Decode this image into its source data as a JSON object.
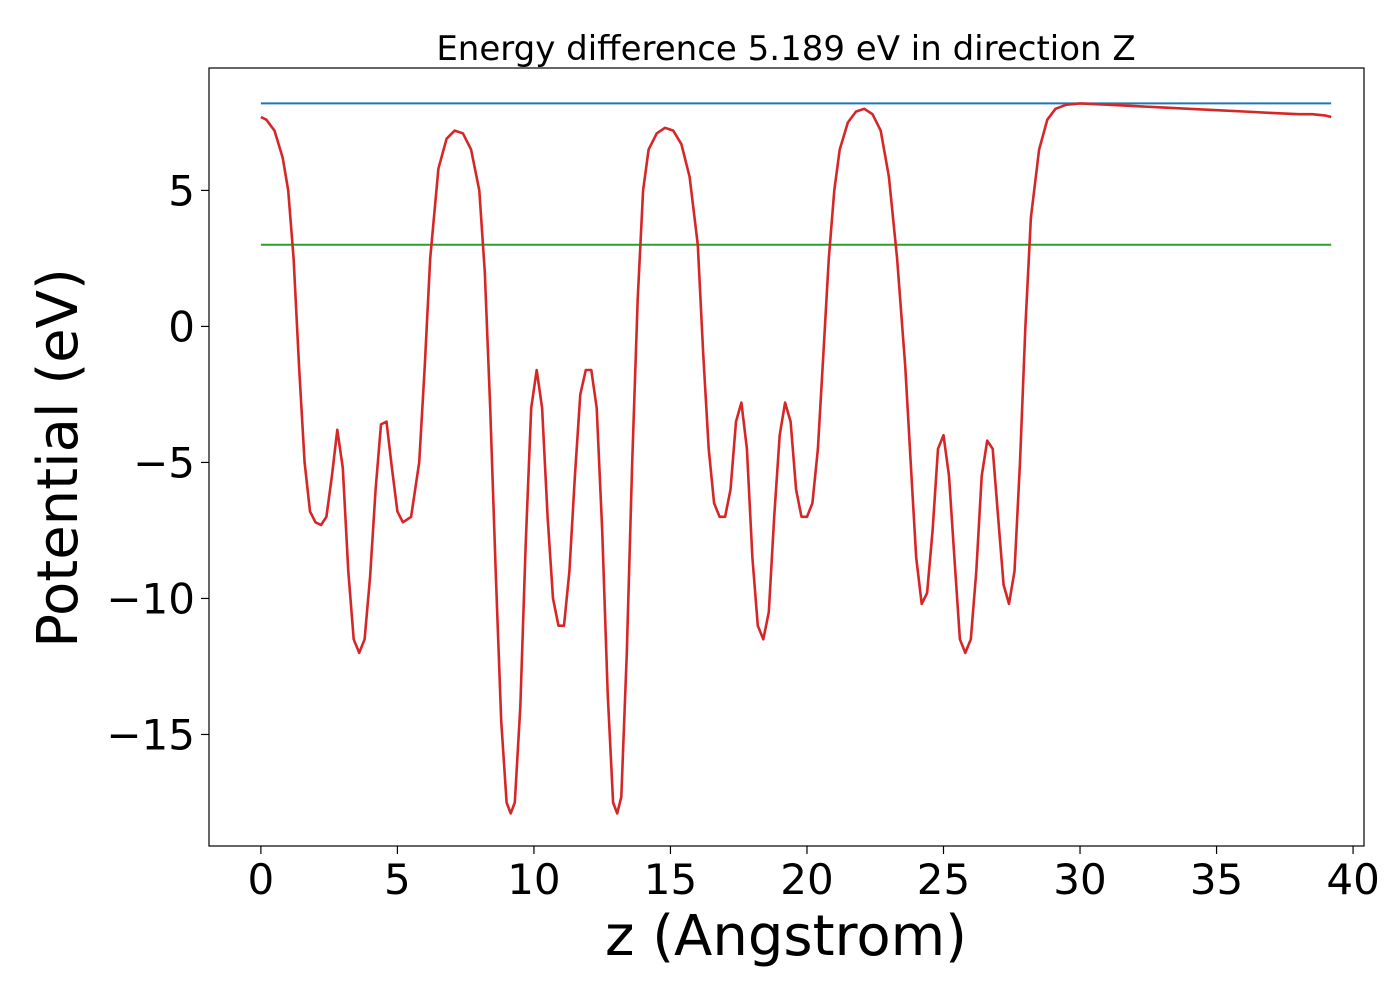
{
  "chart_data": {
    "type": "line",
    "title": "Energy difference 5.189 eV in direction Z",
    "xlabel": "z (Angstrom)",
    "ylabel": "Potential (eV)",
    "xlim": [
      -1.9,
      40.4
    ],
    "ylim": [
      -19.1,
      9.5
    ],
    "xticks": [
      {
        "value": 0,
        "label": "0"
      },
      {
        "value": 5,
        "label": "5"
      },
      {
        "value": 10,
        "label": "10"
      },
      {
        "value": 15,
        "label": "15"
      },
      {
        "value": 20,
        "label": "20"
      },
      {
        "value": 25,
        "label": "25"
      },
      {
        "value": 30,
        "label": "30"
      },
      {
        "value": 35,
        "label": "35"
      },
      {
        "value": 40,
        "label": "40"
      }
    ],
    "yticks": [
      {
        "value": 5,
        "label": "5"
      },
      {
        "value": 0,
        "label": "0"
      },
      {
        "value": -5,
        "label": "−5"
      },
      {
        "value": -10,
        "label": "−10"
      },
      {
        "value": -15,
        "label": "−15"
      }
    ],
    "grid": false,
    "series": [
      {
        "color": "#1f77b4",
        "x": [
          0,
          39.2
        ],
        "y": [
          8.2,
          8.2
        ]
      },
      {
        "color": "#2ca02c",
        "x": [
          0,
          39.2
        ],
        "y": [
          3.0,
          3.0
        ]
      },
      {
        "color": "#d62728",
        "x": [
          0,
          0.2,
          0.5,
          0.8,
          1.0,
          1.2,
          1.4,
          1.6,
          1.8,
          2.0,
          2.2,
          2.4,
          2.6,
          2.8,
          3.0,
          3.2,
          3.4,
          3.6,
          3.8,
          4.0,
          4.2,
          4.4,
          4.6,
          4.8,
          5.0,
          5.2,
          5.5,
          5.8,
          6.0,
          6.2,
          6.5,
          6.8,
          7.1,
          7.4,
          7.7,
          8.0,
          8.2,
          8.4,
          8.6,
          8.8,
          9.0,
          9.15,
          9.3,
          9.5,
          9.7,
          9.9,
          10.1,
          10.3,
          10.5,
          10.7,
          10.9,
          11.1,
          11.3,
          11.5,
          11.7,
          11.9,
          12.1,
          12.3,
          12.5,
          12.7,
          12.9,
          13.05,
          13.2,
          13.4,
          13.6,
          13.8,
          14.0,
          14.2,
          14.5,
          14.8,
          15.1,
          15.4,
          15.7,
          16.0,
          16.2,
          16.4,
          16.6,
          16.8,
          17.0,
          17.2,
          17.4,
          17.6,
          17.8,
          18.0,
          18.2,
          18.4,
          18.6,
          18.8,
          19.0,
          19.2,
          19.4,
          19.6,
          19.8,
          20.0,
          20.2,
          20.4,
          20.6,
          20.8,
          21.0,
          21.2,
          21.5,
          21.8,
          22.1,
          22.4,
          22.7,
          23.0,
          23.3,
          23.6,
          23.8,
          24.0,
          24.2,
          24.4,
          24.6,
          24.8,
          25.0,
          25.2,
          25.4,
          25.6,
          25.8,
          26.0,
          26.2,
          26.4,
          26.6,
          26.8,
          27.0,
          27.2,
          27.4,
          27.6,
          27.8,
          28.0,
          28.2,
          28.5,
          28.8,
          29.1,
          29.5,
          30.0,
          31.0,
          32.0,
          33.0,
          34.0,
          35.0,
          36.0,
          37.0,
          38.0,
          38.5,
          39.0,
          39.2
        ],
        "y": [
          7.7,
          7.6,
          7.2,
          6.2,
          5.0,
          2.5,
          -1.5,
          -5.0,
          -6.8,
          -7.2,
          -7.3,
          -7.0,
          -5.5,
          -3.8,
          -5.2,
          -9.0,
          -11.5,
          -12.0,
          -11.5,
          -9.2,
          -6.0,
          -3.6,
          -3.5,
          -5.2,
          -6.8,
          -7.2,
          -7.0,
          -5.0,
          -1.5,
          2.5,
          5.8,
          6.9,
          7.2,
          7.1,
          6.5,
          5.0,
          2.0,
          -3.0,
          -9.0,
          -14.5,
          -17.5,
          -17.9,
          -17.5,
          -14.0,
          -8.0,
          -3.0,
          -1.6,
          -3.0,
          -7.0,
          -10.0,
          -11.0,
          -11.0,
          -9.0,
          -5.5,
          -2.5,
          -1.6,
          -1.6,
          -3.0,
          -7.5,
          -13.5,
          -17.5,
          -17.9,
          -17.3,
          -12.0,
          -5.0,
          1.0,
          5.0,
          6.5,
          7.1,
          7.3,
          7.2,
          6.7,
          5.5,
          3.0,
          -1.0,
          -4.5,
          -6.5,
          -7.0,
          -7.0,
          -6.0,
          -3.5,
          -2.8,
          -4.5,
          -8.5,
          -11.0,
          -11.5,
          -10.5,
          -7.0,
          -4.0,
          -2.8,
          -3.5,
          -6.0,
          -7.0,
          -7.0,
          -6.5,
          -4.5,
          -1.0,
          2.5,
          5.0,
          6.5,
          7.5,
          7.9,
          8.0,
          7.8,
          7.2,
          5.5,
          2.5,
          -1.5,
          -5.0,
          -8.5,
          -10.2,
          -9.8,
          -7.5,
          -4.5,
          -4.0,
          -5.5,
          -8.5,
          -11.5,
          -12.0,
          -11.5,
          -9.0,
          -5.5,
          -4.2,
          -4.5,
          -7.0,
          -9.5,
          -10.2,
          -9.0,
          -5.0,
          0.0,
          4.0,
          6.5,
          7.6,
          8.0,
          8.15,
          8.2,
          8.15,
          8.1,
          8.05,
          8.0,
          7.95,
          7.9,
          7.85,
          7.8,
          7.8,
          7.75,
          7.7
        ]
      }
    ]
  }
}
